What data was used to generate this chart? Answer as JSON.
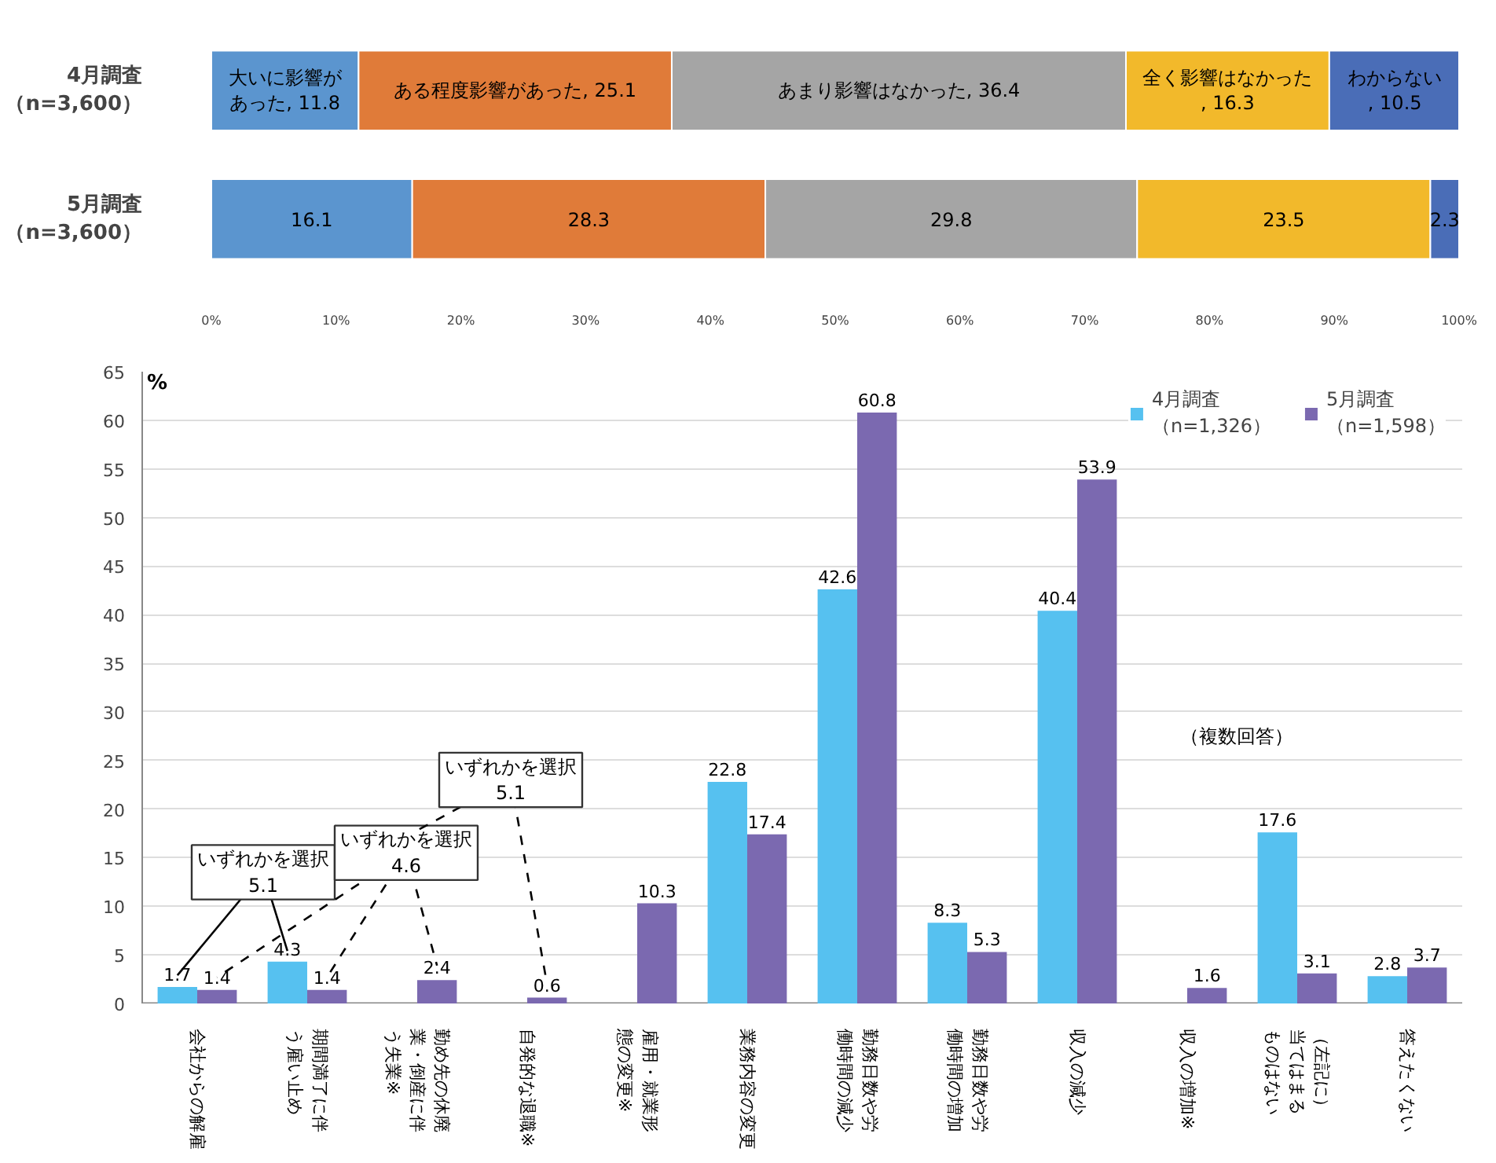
{
  "chart_data": [
    {
      "type": "bar",
      "orientation": "horizontal",
      "stacked": true,
      "legend": false,
      "grid": false,
      "categories": [
        "4月調査（n=3,600）",
        "5月調査（n=3,600）"
      ],
      "xlim": [
        0,
        100
      ],
      "xticks": [
        {
          "value": 0,
          "label": "0%"
        },
        {
          "value": 10,
          "label": "10%"
        },
        {
          "value": 20,
          "label": "20%"
        },
        {
          "value": 30,
          "label": "30%"
        },
        {
          "value": 40,
          "label": "40%"
        },
        {
          "value": 50,
          "label": "50%"
        },
        {
          "value": 60,
          "label": "60%"
        },
        {
          "value": 70,
          "label": "70%"
        },
        {
          "value": 80,
          "label": "80%"
        },
        {
          "value": 90,
          "label": "90%"
        },
        {
          "value": 100,
          "label": "100%"
        }
      ],
      "series": [
        {
          "color": "#5b95cf",
          "values": [
            11.8,
            16.1
          ],
          "value_labels": [
            "大いに影響があった, 11.8",
            "16.1"
          ]
        },
        {
          "color": "#e07b39",
          "values": [
            25.1,
            28.3
          ],
          "value_labels": [
            "ある程度影響があった, 25.1",
            "28.3"
          ]
        },
        {
          "color": "#a5a5a5",
          "values": [
            36.4,
            29.8
          ],
          "value_labels": [
            "あまり影響はなかった, 36.4",
            "29.8"
          ]
        },
        {
          "color": "#f2b92b",
          "values": [
            16.3,
            23.5
          ],
          "value_labels": [
            "全く影響はなかった, 16.3",
            "23.5"
          ]
        },
        {
          "color": "#4a6db7",
          "values": [
            10.5,
            2.3
          ],
          "value_labels": [
            "わからない, 10.5",
            "2.3"
          ]
        }
      ]
    },
    {
      "type": "bar",
      "ylabel": "%",
      "grid": "y",
      "legend": "top right",
      "data_labels": true,
      "categories": [
        "会社からの解雇",
        "期間満了に伴う雇い止め",
        "勤め先の休廃業・倒産に伴う失業※",
        "自発的な退職※",
        "雇用・就業形態の変更※",
        "業務内容の変更",
        "勤務日数や労働時間の減少",
        "勤務日数や労働時間の増加",
        "収入の減少",
        "収入の増加※",
        "（左記に）当てはまるものはない",
        "答えたくない"
      ],
      "ylim": [
        0,
        65
      ],
      "yticks": [
        0,
        5,
        10,
        15,
        20,
        25,
        30,
        35,
        40,
        45,
        50,
        55,
        60,
        65
      ],
      "series": [
        {
          "name": "4月調査（n=1,326）",
          "color": "#56c1f0",
          "values": [
            1.7,
            4.3,
            null,
            null,
            null,
            22.8,
            42.6,
            8.3,
            40.4,
            null,
            17.6,
            2.8
          ]
        },
        {
          "name": "5月調査（n=1,598）",
          "color": "#7b69b0",
          "values": [
            1.4,
            1.4,
            2.4,
            0.6,
            10.3,
            17.4,
            60.8,
            5.3,
            53.9,
            1.6,
            3.1,
            3.7
          ]
        }
      ],
      "annotations": [
        "いずれかを選択\n5.1",
        "いずれかを選択\n4.6",
        "いずれかを選択\n5.1",
        "（複数回答）"
      ]
    }
  ]
}
